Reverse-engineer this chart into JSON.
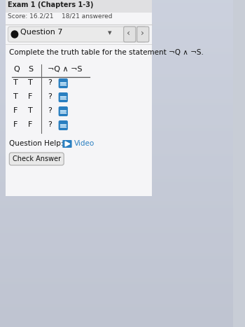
{
  "title_text": "Exam 1 (Chapters 1-3)",
  "score_text": "Score: 16.2/21    18/21 answered",
  "question_label": "Question 7",
  "instruction": "Complete the truth table for the statement ¬Q ∧ ¬S.",
  "col_headers": [
    "Q",
    "S",
    "¬Q ∧ ¬S"
  ],
  "rows": [
    [
      "T",
      "T",
      "?"
    ],
    [
      "T",
      "F",
      "?"
    ],
    [
      "F",
      "T",
      "?"
    ],
    [
      "F",
      "F",
      "?"
    ]
  ],
  "bg_color": "#c8cdd6",
  "card_color": "#f0f0f2",
  "title_color": "#555555",
  "score_color": "#444444",
  "question_bar_color": "#eaeaea",
  "question_border_color": "#cccccc",
  "blue_btn_color": "#2a7fc0",
  "check_btn_color": "#e8e8e8",
  "text_color": "#111111",
  "header_line_color": "#555555",
  "video_color": "#2a7fc0",
  "divider_color": "#666666",
  "nav_btn_color": "#e0e0e0",
  "nav_btn_border": "#aaaaaa"
}
